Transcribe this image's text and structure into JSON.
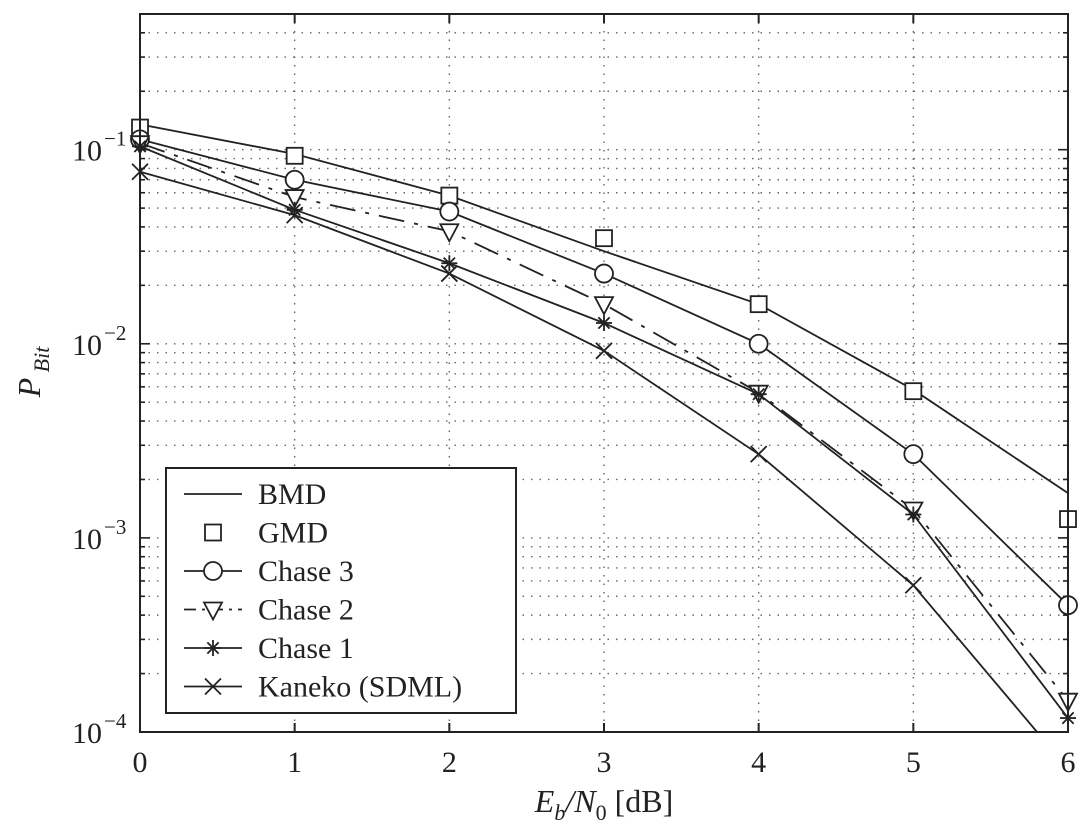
{
  "chart_data": {
    "type": "line",
    "xlabel": "E_b/N_0 [dB]",
    "ylabel": "P_Bit",
    "xlim": [
      0,
      6
    ],
    "ylim": [
      0.0001,
      0.5
    ],
    "yscale": "log",
    "grid": true,
    "legend_position": "bottom-left",
    "x_ticks": [
      "0",
      "1",
      "2",
      "3",
      "4",
      "5",
      "6"
    ],
    "y_ticks": [
      {
        "value": 0.1,
        "base": "10",
        "exp": "−1"
      },
      {
        "value": 0.01,
        "base": "10",
        "exp": "−2"
      },
      {
        "value": 0.001,
        "base": "10",
        "exp": "−3"
      },
      {
        "value": 0.0001,
        "base": "10",
        "exp": "−4"
      }
    ],
    "series": [
      {
        "name": "BMD",
        "marker": "none",
        "line": "solid",
        "x": [
          0,
          1,
          2,
          3,
          4,
          5,
          6
        ],
        "y": [
          0.135,
          0.095,
          0.058,
          0.03,
          0.016,
          0.0058,
          0.0017
        ]
      },
      {
        "name": "GMD",
        "marker": "square",
        "line": "none",
        "x": [
          0,
          1,
          2,
          3,
          4,
          5,
          6
        ],
        "y": [
          0.13,
          0.093,
          0.058,
          0.035,
          0.016,
          0.0057,
          0.00125
        ]
      },
      {
        "name": "Chase 3",
        "marker": "circle",
        "line": "solid",
        "x": [
          0,
          1,
          2,
          3,
          4,
          5,
          6
        ],
        "y": [
          0.113,
          0.07,
          0.048,
          0.023,
          0.01,
          0.0027,
          0.00045
        ]
      },
      {
        "name": "Chase 2",
        "marker": "triangle-down",
        "line": "dashdot",
        "x": [
          0,
          1,
          2,
          3,
          4,
          5,
          6
        ],
        "y": [
          0.108,
          0.057,
          0.038,
          0.016,
          0.0056,
          0.0014,
          0.000145
        ]
      },
      {
        "name": "Chase 1",
        "marker": "asterisk",
        "line": "solid",
        "x": [
          0,
          1,
          2,
          3,
          4,
          5,
          6
        ],
        "y": [
          0.104,
          0.049,
          0.026,
          0.0128,
          0.0055,
          0.00132,
          0.000118
        ]
      },
      {
        "name": "Kaneko (SDML)",
        "marker": "x",
        "line": "solid",
        "x": [
          0,
          1,
          2,
          3,
          4,
          5,
          5.8
        ],
        "y": [
          0.077,
          0.046,
          0.023,
          0.0092,
          0.0027,
          0.00057,
          0.0001
        ]
      }
    ]
  }
}
